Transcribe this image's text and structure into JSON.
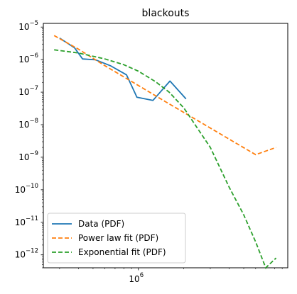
{
  "chart_data": {
    "type": "line",
    "title": "blackouts",
    "xlabel": "",
    "ylabel": "",
    "xscale": "log",
    "yscale": "log",
    "xlim": [
      234000,
      9800000
    ],
    "ylim": [
      4e-13,
      1.3e-05
    ],
    "x_tick_labels": [
      {
        "value": 1000000,
        "mantissa": "10",
        "exp": "6"
      }
    ],
    "y_tick_labels": [
      {
        "value": 1e-05,
        "mantissa": "10",
        "exp": "−5"
      },
      {
        "value": 1e-06,
        "mantissa": "10",
        "exp": "−6"
      },
      {
        "value": 1e-07,
        "mantissa": "10",
        "exp": "−7"
      },
      {
        "value": 1e-08,
        "mantissa": "10",
        "exp": "−8"
      },
      {
        "value": 1e-09,
        "mantissa": "10",
        "exp": "−9"
      },
      {
        "value": 1e-10,
        "mantissa": "10",
        "exp": "−10"
      },
      {
        "value": 1e-11,
        "mantissa": "10",
        "exp": "−11"
      },
      {
        "value": 1e-12,
        "mantissa": "10",
        "exp": "−12"
      }
    ],
    "legend_position": "lower-left",
    "series": [
      {
        "name": "Data (PDF)",
        "color": "#1f77b4",
        "style": "solid",
        "x": [
          300000,
          377000,
          426000,
          519000,
          657000,
          834000,
          978000,
          1250000,
          1620000,
          2070000
        ],
        "y": [
          4.6e-06,
          2.3e-06,
          1.05e-06,
          9.9e-07,
          6.4e-07,
          3.4e-07,
          7e-08,
          5.6e-08,
          2.2e-07,
          6.2e-08
        ]
      },
      {
        "name": "Power law fit (PDF)",
        "color": "#ff7f0e",
        "style": "dashed",
        "x": [
          276000,
          400000,
          600000,
          1000000,
          1500000,
          2500000,
          4000000,
          6000000,
          8200000
        ],
        "y": [
          5.5e-06,
          2.1e-06,
          6.5e-07,
          1.6e-07,
          5.2e-08,
          1.3e-08,
          3.6e-09,
          1.2e-09,
          2e-09
        ]
      },
      {
        "name": "Exponential fit (PDF)",
        "color": "#2ca02c",
        "style": "dashed",
        "x": [
          276000,
          400000,
          600000,
          800000,
          1000000,
          1300000,
          1600000,
          2000000,
          3000000,
          4000000,
          5000000,
          6000000,
          7000000,
          8200000
        ],
        "y": [
          2e-06,
          1.6e-06,
          1.05e-06,
          7e-07,
          4.4e-07,
          2.1e-07,
          1e-07,
          3.3e-08,
          2e-09,
          1.2e-10,
          1.7e-11,
          2.5e-12,
          4e-13,
          8e-13
        ]
      }
    ]
  }
}
